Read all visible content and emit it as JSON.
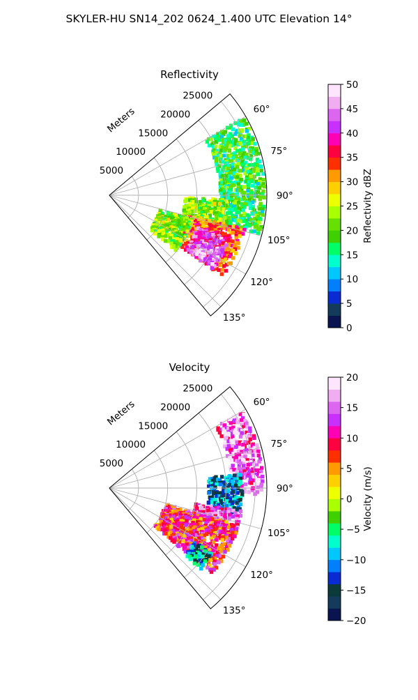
{
  "title": "SKYLER-HU  SN14_202  0624_1.400 UTC Elevation 14°",
  "chart_data": [
    {
      "type": "heatmap",
      "projection": "polar-sector",
      "title": "Reflectivity",
      "range_label": "Meters",
      "range_ticks": [
        "5000",
        "10000",
        "15000",
        "20000",
        "25000"
      ],
      "range_tick_values": [
        5000,
        10000,
        15000,
        20000,
        25000
      ],
      "range_max": 27000,
      "azimuth_range_deg": [
        50,
        140
      ],
      "azimuth_ticks": [
        "60°",
        "75°",
        "90°",
        "105°",
        "120°",
        "135°"
      ],
      "azimuth_tick_values": [
        60,
        75,
        90,
        105,
        120,
        135
      ],
      "grid": true,
      "colorbar": {
        "label": "Reflectivity dBZ",
        "min": 0,
        "max": 50,
        "ticks": [
          "0",
          "5",
          "10",
          "15",
          "20",
          "25",
          "30",
          "35",
          "40",
          "45",
          "50"
        ],
        "tick_values": [
          0,
          5,
          10,
          15,
          20,
          25,
          30,
          35,
          40,
          45,
          50
        ],
        "colormap": [
          "#0a1450",
          "#123c5a",
          "#0a2ad2",
          "#0080ff",
          "#00c8ff",
          "#00ffcc",
          "#00ff66",
          "#40d000",
          "#66e000",
          "#aaff00",
          "#eeff00",
          "#ffd000",
          "#ff9a00",
          "#ff3000",
          "#ff0040",
          "#ff00b4",
          "#c830ff",
          "#dd66f0",
          "#f0aef0",
          "#fde6fd"
        ]
      },
      "echo_regions": [
        {
          "az": [
            60,
            104
          ],
          "r": [
            19000,
            26500
          ],
          "dbz": 18
        },
        {
          "az": [
            92,
            106
          ],
          "r": [
            13000,
            20000
          ],
          "dbz": 22
        },
        {
          "az": [
            104,
            126
          ],
          "r": [
            14000,
            24000
          ],
          "dbz": 34
        },
        {
          "az": [
            110,
            126
          ],
          "r": [
            16000,
            22000
          ],
          "dbz": 42
        },
        {
          "az": [
            116,
            124
          ],
          "r": [
            18000,
            21500
          ],
          "dbz": 46
        },
        {
          "az": [
            106,
            130
          ],
          "r": [
            9000,
            15000
          ],
          "dbz": 22
        }
      ]
    },
    {
      "type": "heatmap",
      "projection": "polar-sector",
      "title": "Velocity",
      "range_label": "Meters",
      "range_ticks": [
        "5000",
        "10000",
        "15000",
        "20000",
        "25000"
      ],
      "range_tick_values": [
        5000,
        10000,
        15000,
        20000,
        25000
      ],
      "range_max": 27000,
      "azimuth_range_deg": [
        50,
        140
      ],
      "azimuth_ticks": [
        "60°",
        "75°",
        "90°",
        "105°",
        "120°",
        "135°"
      ],
      "azimuth_tick_values": [
        60,
        75,
        90,
        105,
        120,
        135
      ],
      "grid": true,
      "colorbar": {
        "label": "Velocity (m/s)",
        "min": -20,
        "max": 20,
        "ticks": [
          "−20",
          "−15",
          "−10",
          "−5",
          "0",
          "5",
          "10",
          "15",
          "20"
        ],
        "tick_values": [
          -20,
          -15,
          -10,
          -5,
          0,
          5,
          10,
          15,
          20
        ],
        "colormap": [
          "#0a1450",
          "#123c5a",
          "#0a3a3a",
          "#0a2ad2",
          "#0080ff",
          "#00c8ff",
          "#00ffcc",
          "#00ff66",
          "#40d000",
          "#aaff00",
          "#eeff00",
          "#ffd000",
          "#ff9a00",
          "#ff3000",
          "#ff0040",
          "#ff00b4",
          "#c830ff",
          "#dd66f0",
          "#f0aef0",
          "#fde6fd"
        ]
      },
      "echo_regions": [
        {
          "az": [
            60,
            92
          ],
          "r": [
            21000,
            26500
          ],
          "vel": 15
        },
        {
          "az": [
            84,
            102
          ],
          "r": [
            17000,
            23000
          ],
          "vel": -12
        },
        {
          "az": [
            100,
            112
          ],
          "r": [
            15000,
            23000
          ],
          "vel": 14
        },
        {
          "az": [
            106,
            130
          ],
          "r": [
            10000,
            23000
          ],
          "vel": 9
        },
        {
          "az": [
            122,
            132
          ],
          "r": [
            17000,
            21000
          ],
          "vel": -10
        }
      ]
    }
  ]
}
